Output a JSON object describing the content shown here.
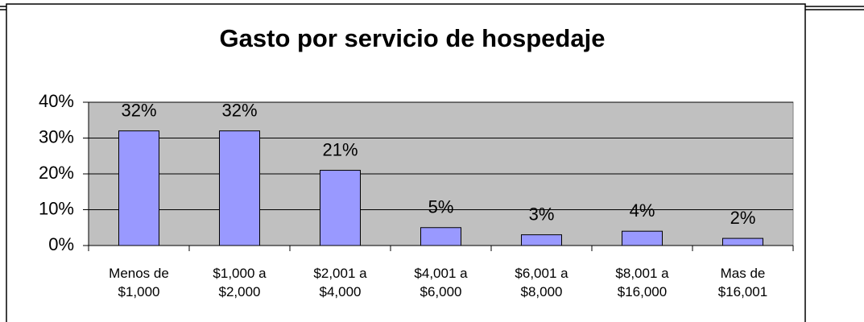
{
  "chart_data": {
    "type": "bar",
    "title": "Gasto por servicio de hospedaje",
    "categories": [
      "Menos de\n$1,000",
      "$1,000 a\n$2,000",
      "$2,001 a\n$4,000",
      "$4,001 a\n$6,000",
      "$6,001 a\n$8,000",
      "$8,001 a\n$16,000",
      "Mas de\n$16,001"
    ],
    "values": [
      32,
      32,
      21,
      5,
      3,
      4,
      2
    ],
    "value_labels": [
      "32%",
      "32%",
      "21%",
      "5%",
      "3%",
      "4%",
      "2%"
    ],
    "color": "#9999ff",
    "ylim": [
      0,
      40
    ],
    "yticks": [
      {
        "value": 0,
        "label": "0%"
      },
      {
        "value": 10,
        "label": "10%"
      },
      {
        "value": 20,
        "label": "20%"
      },
      {
        "value": 30,
        "label": "30%"
      },
      {
        "value": 40,
        "label": "40%"
      }
    ],
    "grid": true
  }
}
